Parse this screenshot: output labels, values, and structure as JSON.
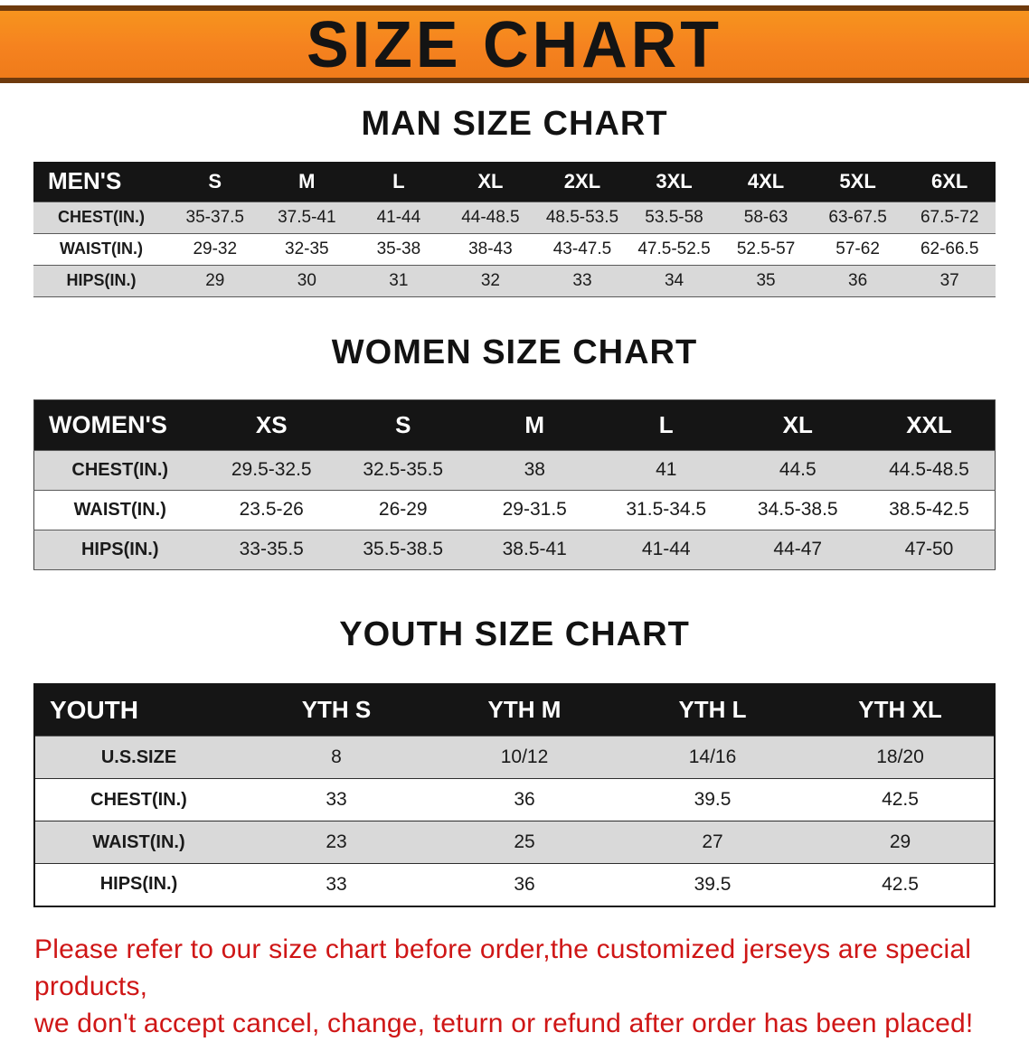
{
  "banner": {
    "title": "SIZE CHART"
  },
  "headings": {
    "men": "MAN SIZE CHART",
    "women": "WOMEN SIZE CHART",
    "youth": "YOUTH SIZE CHART"
  },
  "tables": {
    "men": {
      "header": [
        "MEN'S",
        "S",
        "M",
        "L",
        "XL",
        "2XL",
        "3XL",
        "4XL",
        "5XL",
        "6XL"
      ],
      "rows": [
        [
          "CHEST(IN.)",
          "35-37.5",
          "37.5-41",
          "41-44",
          "44-48.5",
          "48.5-53.5",
          "53.5-58",
          "58-63",
          "63-67.5",
          "67.5-72"
        ],
        [
          "WAIST(IN.)",
          "29-32",
          "32-35",
          "35-38",
          "38-43",
          "43-47.5",
          "47.5-52.5",
          "52.5-57",
          "57-62",
          "62-66.5"
        ],
        [
          "HIPS(IN.)",
          "29",
          "30",
          "31",
          "32",
          "33",
          "34",
          "35",
          "36",
          "37"
        ]
      ]
    },
    "women": {
      "header": [
        "WOMEN'S",
        "XS",
        "S",
        "M",
        "L",
        "XL",
        "XXL"
      ],
      "rows": [
        [
          "CHEST(IN.)",
          "29.5-32.5",
          "32.5-35.5",
          "38",
          "41",
          "44.5",
          "44.5-48.5"
        ],
        [
          "WAIST(IN.)",
          "23.5-26",
          "26-29",
          "29-31.5",
          "31.5-34.5",
          "34.5-38.5",
          "38.5-42.5"
        ],
        [
          "HIPS(IN.)",
          "33-35.5",
          "35.5-38.5",
          "38.5-41",
          "41-44",
          "44-47",
          "47-50"
        ]
      ]
    },
    "youth": {
      "header": [
        "YOUTH",
        "YTH S",
        "YTH M",
        "YTH L",
        "YTH XL"
      ],
      "rows": [
        [
          "U.S.SIZE",
          "8",
          "10/12",
          "14/16",
          "18/20"
        ],
        [
          "CHEST(IN.)",
          "33",
          "36",
          "39.5",
          "42.5"
        ],
        [
          "WAIST(IN.)",
          "23",
          "25",
          "27",
          "29"
        ],
        [
          "HIPS(IN.)",
          "33",
          "36",
          "39.5",
          "42.5"
        ]
      ]
    }
  },
  "footer": {
    "line1": "Please refer to our size chart before order,the customized jerseys are special products,",
    "line2": "we don't accept cancel, change, teturn or refund after order has been placed!"
  },
  "colors": {
    "banner_bg": "#f5821f",
    "banner_border": "#6e3a0d",
    "table_header_bg": "#151515",
    "row_alt_bg": "#d9d9d9",
    "footer_text": "#cf1616"
  }
}
